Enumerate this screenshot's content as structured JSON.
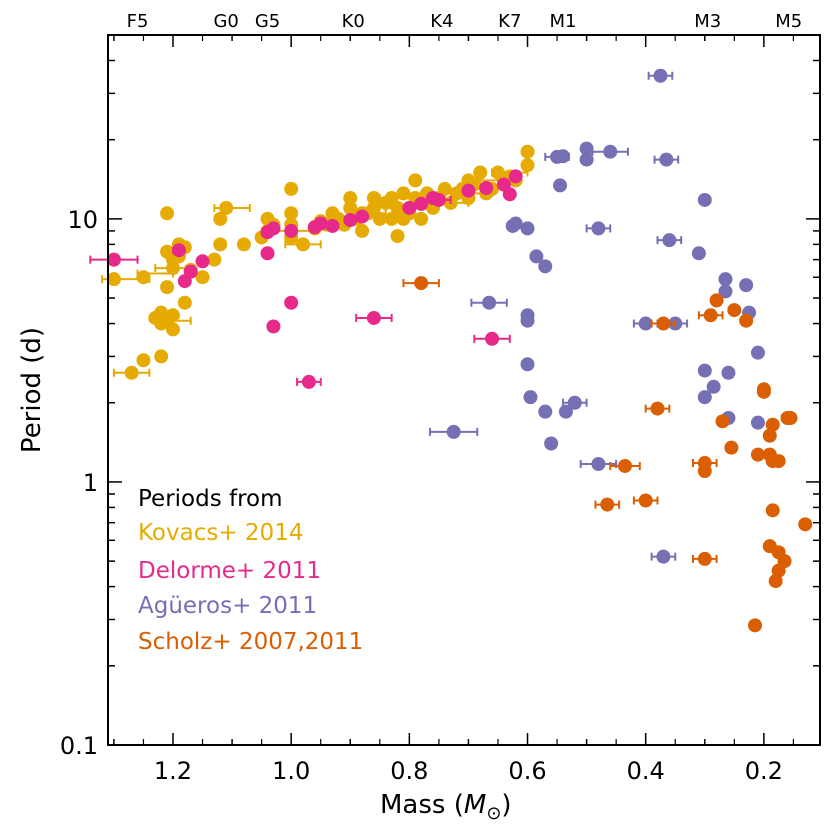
{
  "chart_data": {
    "type": "scatter",
    "xlabel": "Mass",
    "xlabel_unit": "M",
    "xlabel_unit_sub": "⊙",
    "ylabel": "Period (d)",
    "yscale": "log",
    "xlim": [
      1.31,
      0.105
    ],
    "ylim": [
      0.1,
      50
    ],
    "x_ticks": [
      {
        "value": 1.2,
        "label": "1.2"
      },
      {
        "value": 1.0,
        "label": "1.0"
      },
      {
        "value": 0.8,
        "label": "0.8"
      },
      {
        "value": 0.6,
        "label": "0.6"
      },
      {
        "value": 0.4,
        "label": "0.4"
      },
      {
        "value": 0.2,
        "label": "0.2"
      }
    ],
    "y_ticks": [
      {
        "value": 0.1,
        "label": "0.1"
      },
      {
        "value": 1,
        "label": "1"
      },
      {
        "value": 10,
        "label": "10"
      }
    ],
    "spectral_types": [
      {
        "label": "F5",
        "mass": 1.26
      },
      {
        "label": "G0",
        "mass": 1.11
      },
      {
        "label": "G5",
        "mass": 1.04
      },
      {
        "label": "K0",
        "mass": 0.895
      },
      {
        "label": "K4",
        "mass": 0.745
      },
      {
        "label": "K7",
        "mass": 0.63
      },
      {
        "label": "M1",
        "mass": 0.54
      },
      {
        "label": "M3",
        "mass": 0.295
      },
      {
        "label": "M5",
        "mass": 0.158
      }
    ],
    "legend_title": "Periods from",
    "series": [
      {
        "name": "Kovacs+ 2014",
        "color": "#e6ab02",
        "points": [
          [
            1.3,
            5.9
          ],
          [
            1.27,
            2.6
          ],
          [
            1.25,
            2.9
          ],
          [
            1.25,
            6.0
          ],
          [
            1.23,
            4.2
          ],
          [
            1.22,
            4.0
          ],
          [
            1.22,
            4.4
          ],
          [
            1.22,
            3.0
          ],
          [
            1.21,
            4.1
          ],
          [
            1.2,
            3.8
          ],
          [
            1.2,
            4.3
          ],
          [
            1.21,
            5.5
          ],
          [
            1.2,
            6.5
          ],
          [
            1.2,
            7.0
          ],
          [
            1.21,
            7.5
          ],
          [
            1.19,
            7.2
          ],
          [
            1.19,
            8.0
          ],
          [
            1.18,
            7.8
          ],
          [
            1.18,
            4.8
          ],
          [
            1.17,
            6.4
          ],
          [
            1.21,
            10.5
          ],
          [
            1.15,
            6.0
          ],
          [
            1.13,
            7.0
          ],
          [
            1.12,
            8.0
          ],
          [
            1.12,
            10.0
          ],
          [
            1.11,
            11.0
          ],
          [
            1.08,
            8.0
          ],
          [
            1.05,
            8.5
          ],
          [
            1.04,
            9.0
          ],
          [
            1.04,
            10.0
          ],
          [
            1.03,
            9.5
          ],
          [
            1.0,
            9.5
          ],
          [
            1.0,
            10.5
          ],
          [
            1.0,
            13.0
          ],
          [
            1.0,
            8.5
          ],
          [
            0.98,
            8.0
          ],
          [
            0.96,
            9.2
          ],
          [
            0.95,
            9.8
          ],
          [
            0.94,
            9.5
          ],
          [
            0.93,
            10.5
          ],
          [
            0.92,
            10.0
          ],
          [
            0.91,
            9.5
          ],
          [
            0.9,
            12.0
          ],
          [
            0.9,
            11.0
          ],
          [
            0.89,
            10.0
          ],
          [
            0.88,
            10.5
          ],
          [
            0.88,
            9.0
          ],
          [
            0.87,
            10.5
          ],
          [
            0.86,
            11.0
          ],
          [
            0.86,
            12.0
          ],
          [
            0.85,
            10.0
          ],
          [
            0.84,
            11.5
          ],
          [
            0.83,
            10.0
          ],
          [
            0.83,
            12.0
          ],
          [
            0.82,
            11.0
          ],
          [
            0.82,
            8.6
          ],
          [
            0.81,
            12.5
          ],
          [
            0.8,
            11.0
          ],
          [
            0.8,
            10.5
          ],
          [
            0.79,
            14.0
          ],
          [
            0.79,
            12.0
          ],
          [
            0.78,
            11.5
          ],
          [
            0.77,
            12.5
          ],
          [
            0.76,
            11.0
          ],
          [
            0.75,
            12.0
          ],
          [
            0.74,
            13.0
          ],
          [
            0.73,
            11.5
          ],
          [
            0.72,
            12.5
          ],
          [
            0.71,
            13.0
          ],
          [
            0.7,
            14.0
          ],
          [
            0.7,
            12.0
          ],
          [
            0.69,
            13.5
          ],
          [
            0.68,
            15.0
          ],
          [
            0.67,
            12.5
          ],
          [
            0.66,
            13.0
          ],
          [
            0.65,
            15.0
          ],
          [
            0.64,
            14.0
          ],
          [
            0.63,
            14.5
          ],
          [
            0.62,
            14.0
          ],
          [
            0.6,
            16.0
          ],
          [
            0.6,
            18.0
          ],
          [
            0.81,
            10.0
          ],
          [
            0.8,
            10.5
          ],
          [
            0.78,
            10.0
          ],
          [
            0.77,
            11.5
          ]
        ],
        "errors": [
          {
            "x": 1.28,
            "y": 5.9,
            "dx": 0.04
          },
          {
            "x": 1.27,
            "y": 2.6,
            "dx": 0.03
          },
          {
            "x": 1.23,
            "y": 6.2,
            "dx": 0.03
          },
          {
            "x": 1.2,
            "y": 4.1,
            "dx": 0.03
          },
          {
            "x": 1.2,
            "y": 6.5,
            "dx": 0.03
          },
          {
            "x": 1.1,
            "y": 11.0,
            "dx": 0.03
          },
          {
            "x": 1.0,
            "y": 9.0,
            "dx": 0.04
          },
          {
            "x": 0.98,
            "y": 8.0,
            "dx": 0.03
          },
          {
            "x": 0.87,
            "y": 10.5,
            "dx": 0.03
          },
          {
            "x": 0.82,
            "y": 12.0,
            "dx": 0.03
          },
          {
            "x": 0.8,
            "y": 11.0,
            "dx": 0.04
          },
          {
            "x": 0.73,
            "y": 11.5,
            "dx": 0.03
          },
          {
            "x": 0.7,
            "y": 12.5,
            "dx": 0.04
          },
          {
            "x": 0.65,
            "y": 14.0,
            "dx": 0.03
          },
          {
            "x": 0.63,
            "y": 15.0,
            "dx": 0.03
          }
        ]
      },
      {
        "name": "Delorme+ 2011",
        "color": "#e7298a",
        "points": [
          [
            1.3,
            7.0
          ],
          [
            1.19,
            7.6
          ],
          [
            1.18,
            5.8
          ],
          [
            1.17,
            6.3
          ],
          [
            1.15,
            6.9
          ],
          [
            1.04,
            7.4
          ],
          [
            1.04,
            8.9
          ],
          [
            1.03,
            9.2
          ],
          [
            1.03,
            3.9
          ],
          [
            1.0,
            4.8
          ],
          [
            1.0,
            9.0
          ],
          [
            0.97,
            2.4
          ],
          [
            0.96,
            9.3
          ],
          [
            0.95,
            9.6
          ],
          [
            0.93,
            9.4
          ],
          [
            0.9,
            9.9
          ],
          [
            0.88,
            10.2
          ],
          [
            0.86,
            4.2
          ],
          [
            0.8,
            11.0
          ],
          [
            0.78,
            11.4
          ],
          [
            0.76,
            12.0
          ],
          [
            0.75,
            11.8
          ],
          [
            0.7,
            12.8
          ],
          [
            0.67,
            13.1
          ],
          [
            0.66,
            3.5
          ],
          [
            0.64,
            13.5
          ],
          [
            0.63,
            12.4
          ],
          [
            0.62,
            14.5
          ]
        ],
        "errors": [
          {
            "x": 1.3,
            "y": 7.0,
            "dx": 0.04
          },
          {
            "x": 0.97,
            "y": 2.4,
            "dx": 0.02
          },
          {
            "x": 0.86,
            "y": 4.2,
            "dx": 0.03
          },
          {
            "x": 0.66,
            "y": 3.5,
            "dx": 0.03
          },
          {
            "x": 0.75,
            "y": 11.8,
            "dx": 0.02
          }
        ]
      },
      {
        "name": "Agüeros+ 2011",
        "color": "#7570b3",
        "points": [
          [
            0.375,
            35.0
          ],
          [
            0.55,
            17.2
          ],
          [
            0.54,
            17.3
          ],
          [
            0.5,
            18.5
          ],
          [
            0.5,
            16.8
          ],
          [
            0.46,
            18.0
          ],
          [
            0.365,
            16.8
          ],
          [
            0.545,
            13.4
          ],
          [
            0.3,
            11.8
          ],
          [
            0.625,
            9.4
          ],
          [
            0.62,
            9.6
          ],
          [
            0.6,
            9.2
          ],
          [
            0.48,
            9.2
          ],
          [
            0.36,
            8.3
          ],
          [
            0.31,
            7.4
          ],
          [
            0.585,
            7.2
          ],
          [
            0.57,
            6.6
          ],
          [
            0.265,
            5.9
          ],
          [
            0.265,
            5.3
          ],
          [
            0.23,
            5.6
          ],
          [
            0.665,
            4.8
          ],
          [
            0.6,
            4.3
          ],
          [
            0.6,
            4.1
          ],
          [
            0.4,
            4.0
          ],
          [
            0.35,
            4.0
          ],
          [
            0.225,
            4.4
          ],
          [
            0.21,
            3.1
          ],
          [
            0.6,
            2.8
          ],
          [
            0.3,
            2.65
          ],
          [
            0.26,
            2.6
          ],
          [
            0.285,
            2.3
          ],
          [
            0.595,
            2.1
          ],
          [
            0.52,
            2.0
          ],
          [
            0.3,
            2.1
          ],
          [
            0.57,
            1.85
          ],
          [
            0.535,
            1.85
          ],
          [
            0.26,
            1.75
          ],
          [
            0.21,
            1.68
          ],
          [
            0.725,
            1.55
          ],
          [
            0.56,
            1.4
          ],
          [
            0.48,
            1.17
          ],
          [
            0.37,
            0.52
          ]
        ],
        "errors": [
          {
            "x": 0.375,
            "y": 35.0,
            "dx": 0.02
          },
          {
            "x": 0.55,
            "y": 17.2,
            "dx": 0.02
          },
          {
            "x": 0.46,
            "y": 18.0,
            "dx": 0.03
          },
          {
            "x": 0.365,
            "y": 16.8,
            "dx": 0.02
          },
          {
            "x": 0.48,
            "y": 9.2,
            "dx": 0.02
          },
          {
            "x": 0.36,
            "y": 8.3,
            "dx": 0.02
          },
          {
            "x": 0.665,
            "y": 4.8,
            "dx": 0.03
          },
          {
            "x": 0.4,
            "y": 4.0,
            "dx": 0.02
          },
          {
            "x": 0.35,
            "y": 4.0,
            "dx": 0.02
          },
          {
            "x": 0.52,
            "y": 2.0,
            "dx": 0.02
          },
          {
            "x": 0.725,
            "y": 1.55,
            "dx": 0.04
          },
          {
            "x": 0.48,
            "y": 1.17,
            "dx": 0.03
          },
          {
            "x": 0.37,
            "y": 0.52,
            "dx": 0.02
          }
        ]
      },
      {
        "name": "Scholz+ 2007,2011",
        "color": "#d95f02",
        "points": [
          [
            0.78,
            5.7
          ],
          [
            0.37,
            4.0
          ],
          [
            0.28,
            4.9
          ],
          [
            0.29,
            4.3
          ],
          [
            0.25,
            4.5
          ],
          [
            0.23,
            4.1
          ],
          [
            0.38,
            1.9
          ],
          [
            0.27,
            1.7
          ],
          [
            0.2,
            2.25
          ],
          [
            0.2,
            2.2
          ],
          [
            0.16,
            1.75
          ],
          [
            0.155,
            1.75
          ],
          [
            0.185,
            1.65
          ],
          [
            0.19,
            1.5
          ],
          [
            0.255,
            1.35
          ],
          [
            0.21,
            1.27
          ],
          [
            0.19,
            1.27
          ],
          [
            0.185,
            1.2
          ],
          [
            0.175,
            1.2
          ],
          [
            0.3,
            1.18
          ],
          [
            0.3,
            1.1
          ],
          [
            0.435,
            1.15
          ],
          [
            0.4,
            0.85
          ],
          [
            0.465,
            0.82
          ],
          [
            0.185,
            0.78
          ],
          [
            0.13,
            0.69
          ],
          [
            0.19,
            0.57
          ],
          [
            0.175,
            0.54
          ],
          [
            0.165,
            0.5
          ],
          [
            0.175,
            0.46
          ],
          [
            0.18,
            0.42
          ],
          [
            0.3,
            0.51
          ],
          [
            0.215,
            0.285
          ]
        ],
        "errors": [
          {
            "x": 0.78,
            "y": 5.7,
            "dx": 0.03
          },
          {
            "x": 0.37,
            "y": 4.0,
            "dx": 0.02
          },
          {
            "x": 0.29,
            "y": 4.3,
            "dx": 0.02
          },
          {
            "x": 0.38,
            "y": 1.9,
            "dx": 0.02
          },
          {
            "x": 0.3,
            "y": 1.18,
            "dx": 0.02
          },
          {
            "x": 0.435,
            "y": 1.15,
            "dx": 0.025
          },
          {
            "x": 0.4,
            "y": 0.85,
            "dx": 0.02
          },
          {
            "x": 0.465,
            "y": 0.82,
            "dx": 0.02
          },
          {
            "x": 0.3,
            "y": 0.51,
            "dx": 0.02
          }
        ]
      }
    ]
  }
}
